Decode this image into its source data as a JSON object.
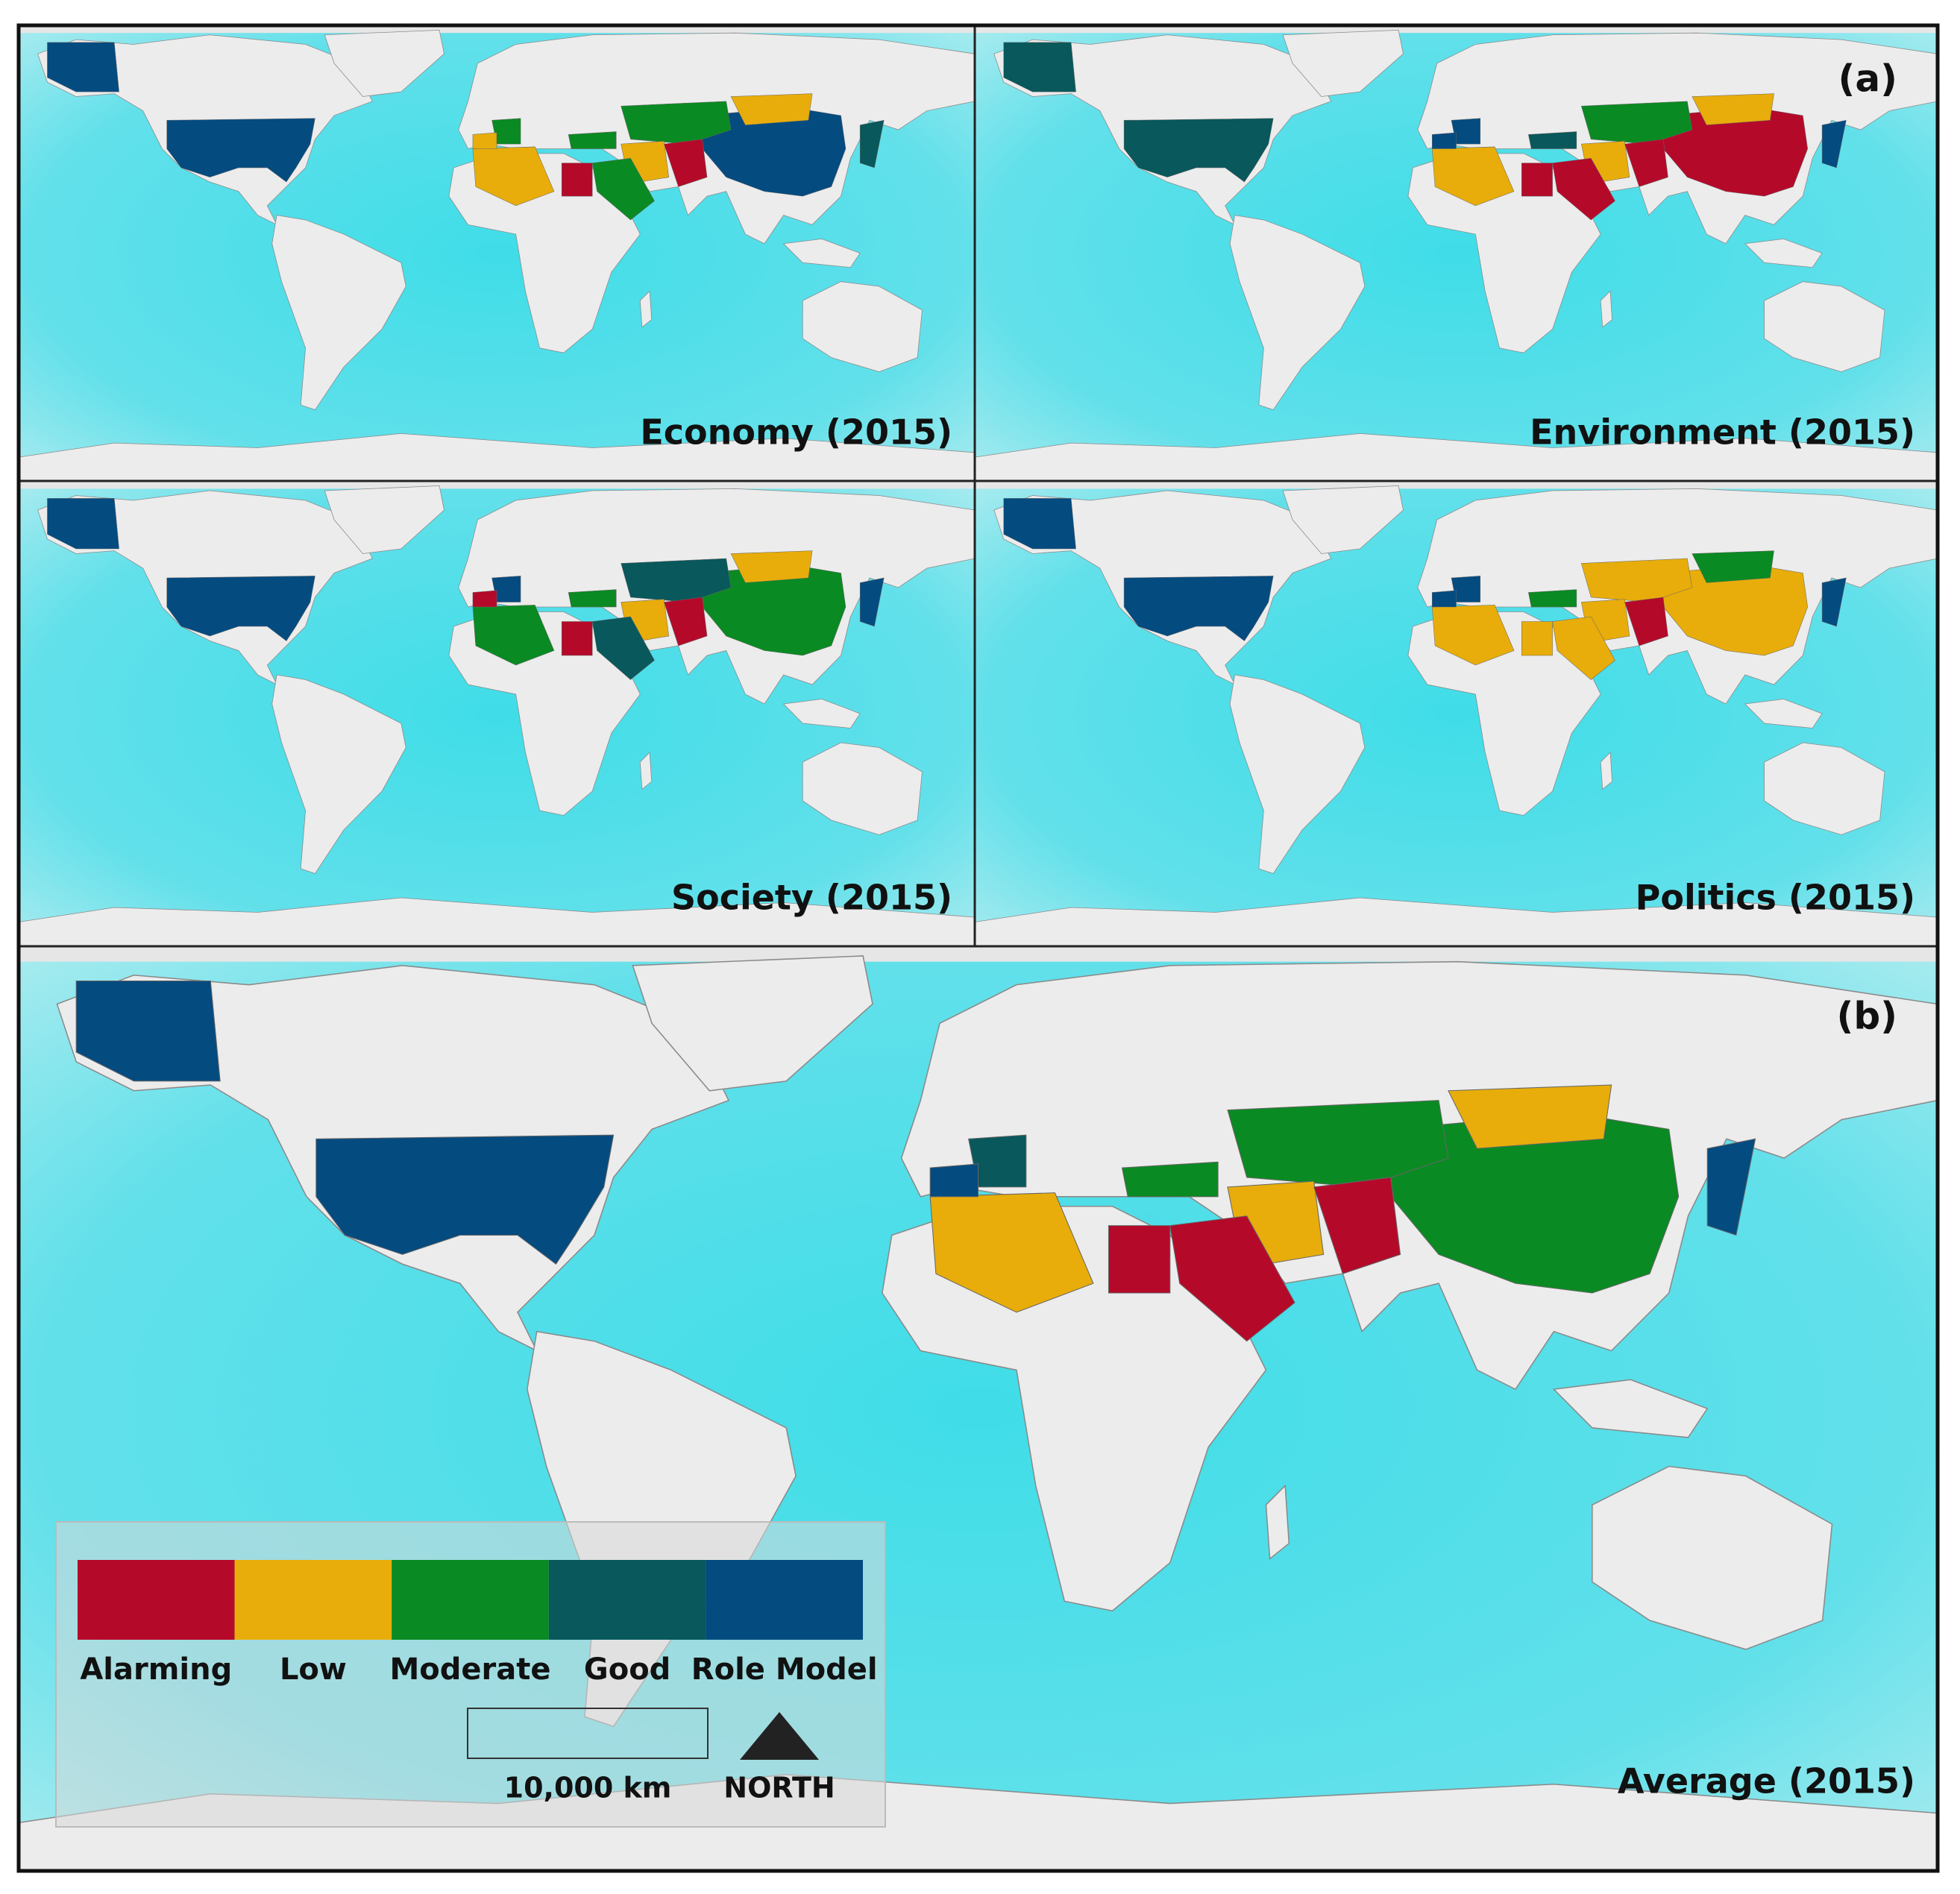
{
  "panel_letters": [
    "(a)",
    "(b)"
  ],
  "panels": [
    {
      "label": "Economy (2015)"
    },
    {
      "label": "Environment (2015)"
    },
    {
      "label": "Society (2015)"
    },
    {
      "label": "Politics (2015)"
    },
    {
      "label": "Average (2015)"
    }
  ],
  "legend": {
    "items": [
      {
        "name": "Alarming",
        "color": "#b5092a"
      },
      {
        "name": "Low",
        "color": "#e8ad0a"
      },
      {
        "name": "Moderate",
        "color": "#0a8a22"
      },
      {
        "name": "Good",
        "color": "#08585c"
      },
      {
        "name": "Role Model",
        "color": "#044b80"
      }
    ],
    "scale_bar": "10,000 km",
    "north": "NORTH"
  }
}
